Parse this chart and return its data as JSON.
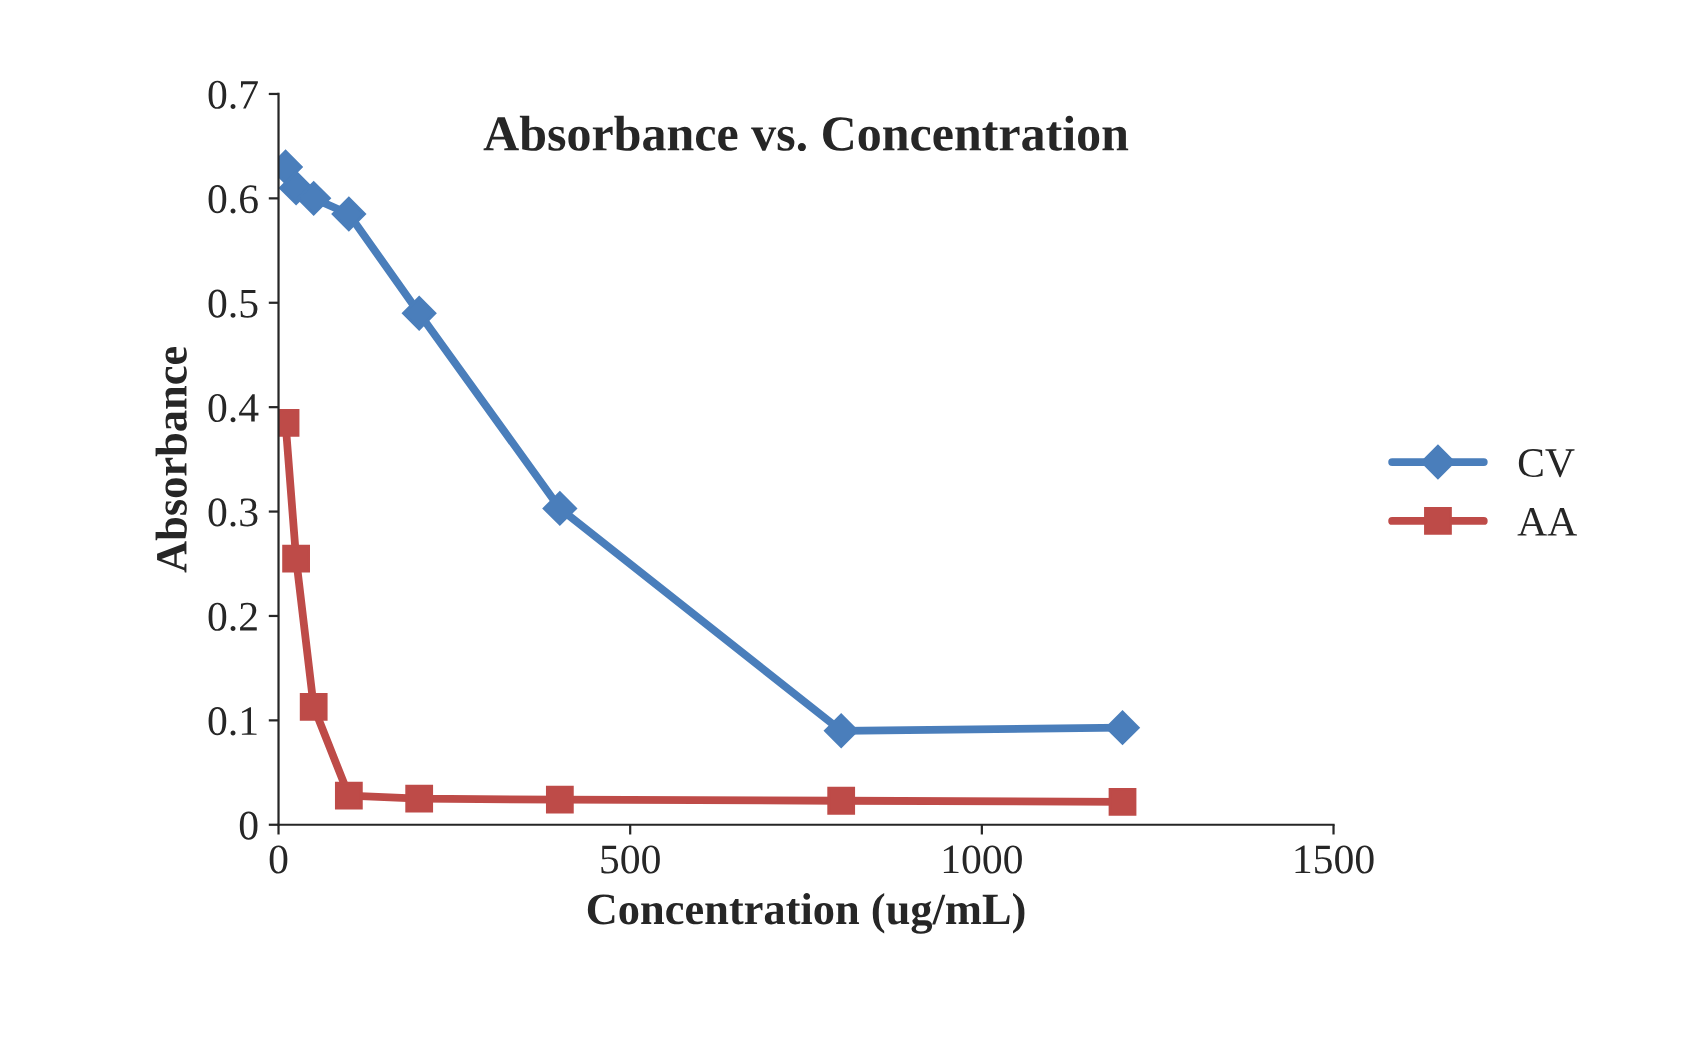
{
  "chart_data": {
    "type": "line",
    "title": "Absorbance vs. Concentration",
    "xlabel": "Concentration (ug/mL)",
    "ylabel": "Absorbance",
    "x": [
      10,
      25,
      50,
      100,
      200,
      400,
      800,
      1200
    ],
    "series": [
      {
        "name": "CV",
        "color": "#4a7ebb",
        "marker": "diamond",
        "values": [
          0.63,
          0.61,
          0.6,
          0.585,
          0.49,
          0.303,
          0.09,
          0.093
        ]
      },
      {
        "name": "AA",
        "color": "#be4b48",
        "marker": "square",
        "values": [
          0.385,
          0.255,
          0.113,
          0.028,
          0.025,
          0.024,
          0.023,
          0.022
        ]
      }
    ],
    "xlim": [
      0,
      1500
    ],
    "xticks": [
      0,
      500,
      1000,
      1500
    ],
    "ylim": [
      0,
      0.7
    ],
    "yticks": [
      0,
      0.1,
      0.2,
      0.3,
      0.4,
      0.5,
      0.6,
      0.7
    ],
    "grid": false,
    "legend": "right",
    "line_style": "solid"
  }
}
